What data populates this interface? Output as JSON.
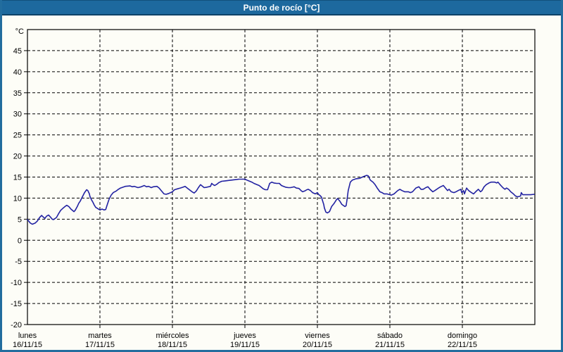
{
  "window": {
    "title": "Punto de rocío [°C]"
  },
  "colors": {
    "titlebar_bg": "#1d699e",
    "titlebar_text": "#ffffff",
    "frame_border": "#226d9e",
    "background": "#fdfdf7",
    "axis": "#000000",
    "gridline": "#000000",
    "series_line": "#2222a2"
  },
  "chart_data": {
    "type": "line",
    "title": "Punto de rocío [°C]",
    "grid": "dashed",
    "legend": "none",
    "y_axis": {
      "unit_label": "°C",
      "min": -20,
      "max": 50,
      "tick_step": 5,
      "tick_labels": [
        "45",
        "40",
        "35",
        "30",
        "25",
        "20",
        "15",
        "10",
        "5",
        "0",
        "-5",
        "-10",
        "-15",
        "-20"
      ]
    },
    "x_axis": {
      "hours_total": 168,
      "hours_per_day": 24,
      "day_labels": [
        {
          "name": "lunes",
          "date": "16/11/15"
        },
        {
          "name": "martes",
          "date": "17/11/15"
        },
        {
          "name": "miércoles",
          "date": "18/11/15"
        },
        {
          "name": "jueves",
          "date": "19/11/15"
        },
        {
          "name": "viernes",
          "date": "20/11/15"
        },
        {
          "name": "sábado",
          "date": "21/11/15"
        },
        {
          "name": "domingo",
          "date": "22/11/15"
        }
      ]
    },
    "series": [
      {
        "name": "Punto de rocío",
        "color": "#2222a2",
        "points": [
          [
            0,
            4.9
          ],
          [
            0.5,
            4.5
          ],
          [
            0.9,
            4.1
          ],
          [
            1.6,
            3.8
          ],
          [
            2.6,
            4.1
          ],
          [
            3.3,
            4.6
          ],
          [
            4,
            5.4
          ],
          [
            4.7,
            5.9
          ],
          [
            5.1,
            5.6
          ],
          [
            5.8,
            5.2
          ],
          [
            6.3,
            5.7
          ],
          [
            7,
            6
          ],
          [
            7.5,
            5.6
          ],
          [
            8.2,
            5
          ],
          [
            8.6,
            4.9
          ],
          [
            9.6,
            5.4
          ],
          [
            10.3,
            6.3
          ],
          [
            11,
            7.1
          ],
          [
            11.9,
            7.7
          ],
          [
            12.6,
            8.1
          ],
          [
            13,
            8.3
          ],
          [
            13.7,
            8
          ],
          [
            14.4,
            7.4
          ],
          [
            15.4,
            6.8
          ],
          [
            15.8,
            7.1
          ],
          [
            16.5,
            8
          ],
          [
            17,
            8.8
          ],
          [
            17.5,
            9.3
          ],
          [
            17.9,
            9.9
          ],
          [
            18.4,
            10.6
          ],
          [
            18.9,
            11.3
          ],
          [
            19.6,
            12
          ],
          [
            20,
            11.8
          ],
          [
            20.5,
            11
          ],
          [
            20.7,
            10.4
          ],
          [
            21.2,
            9.6
          ],
          [
            21.7,
            9
          ],
          [
            22.1,
            8.4
          ],
          [
            22.6,
            7.8
          ],
          [
            23.1,
            7.6
          ],
          [
            23.5,
            7.4
          ],
          [
            24,
            7.2
          ],
          [
            24.7,
            7.4
          ],
          [
            25.4,
            7.2
          ],
          [
            25.9,
            7.3
          ],
          [
            26.3,
            8.2
          ],
          [
            27,
            9.7
          ],
          [
            27.7,
            10.7
          ],
          [
            28.4,
            11.3
          ],
          [
            29.4,
            11.7
          ],
          [
            30.1,
            12.1
          ],
          [
            30.8,
            12.4
          ],
          [
            32.4,
            12.8
          ],
          [
            34,
            12.9
          ],
          [
            34.7,
            12.7
          ],
          [
            35.4,
            12.8
          ],
          [
            36.6,
            12.5
          ],
          [
            37.7,
            12.7
          ],
          [
            38.7,
            13
          ],
          [
            39.4,
            12.7
          ],
          [
            40.1,
            12.8
          ],
          [
            41,
            12.5
          ],
          [
            41.7,
            12.7
          ],
          [
            42.9,
            12.8
          ],
          [
            43.6,
            12.4
          ],
          [
            44.3,
            11.8
          ],
          [
            45.2,
            11
          ],
          [
            45.9,
            10.9
          ],
          [
            46.8,
            11.1
          ],
          [
            48,
            11.5
          ],
          [
            48.7,
            12
          ],
          [
            49.6,
            12.2
          ],
          [
            50.6,
            12.4
          ],
          [
            51.5,
            12.6
          ],
          [
            52.2,
            12.8
          ],
          [
            52.9,
            12.4
          ],
          [
            53.8,
            11.9
          ],
          [
            54.5,
            11.5
          ],
          [
            55.2,
            11.2
          ],
          [
            55.9,
            11.7
          ],
          [
            56.6,
            12.5
          ],
          [
            57.3,
            13.2
          ],
          [
            58,
            12.8
          ],
          [
            58.5,
            12.5
          ],
          [
            59.4,
            12.6
          ],
          [
            60.6,
            12.8
          ],
          [
            61,
            13.5
          ],
          [
            61.5,
            13.2
          ],
          [
            62,
            13
          ],
          [
            62.7,
            13.3
          ],
          [
            63.4,
            13.7
          ],
          [
            64.3,
            14
          ],
          [
            65.5,
            14.1
          ],
          [
            66.6,
            14.2
          ],
          [
            67.8,
            14.3
          ],
          [
            69,
            14.4
          ],
          [
            70.1,
            14.5
          ],
          [
            71.1,
            14.5
          ],
          [
            72,
            14.5
          ],
          [
            72.9,
            14.2
          ],
          [
            73.6,
            14
          ],
          [
            74.3,
            13.8
          ],
          [
            75,
            13.5
          ],
          [
            75.7,
            13.3
          ],
          [
            76.7,
            13
          ],
          [
            77.4,
            12.6
          ],
          [
            78.1,
            12.2
          ],
          [
            78.8,
            12
          ],
          [
            79.5,
            12
          ],
          [
            80.2,
            13.5
          ],
          [
            80.9,
            13.8
          ],
          [
            81.6,
            13.6
          ],
          [
            82.5,
            13.5
          ],
          [
            83.4,
            13.5
          ],
          [
            84.1,
            13
          ],
          [
            84.8,
            12.8
          ],
          [
            85.5,
            12.6
          ],
          [
            86.4,
            12.5
          ],
          [
            87.1,
            12.5
          ],
          [
            87.8,
            12.6
          ],
          [
            88.3,
            12.7
          ],
          [
            89,
            12.4
          ],
          [
            89.9,
            12.3
          ],
          [
            90.6,
            11.8
          ],
          [
            91.1,
            11.5
          ],
          [
            91.8,
            11.7
          ],
          [
            92.5,
            12
          ],
          [
            93,
            12.1
          ],
          [
            93.7,
            11.8
          ],
          [
            94.4,
            11.3
          ],
          [
            95.3,
            11
          ],
          [
            96,
            11.3
          ],
          [
            96.5,
            10.8
          ],
          [
            96.9,
            10.6
          ],
          [
            97.4,
            10.2
          ],
          [
            97.6,
            9.6
          ],
          [
            98.1,
            8.5
          ],
          [
            98.3,
            7.7
          ],
          [
            98.8,
            6.7
          ],
          [
            99.3,
            6.5
          ],
          [
            100,
            6.8
          ],
          [
            100.7,
            8
          ],
          [
            101.6,
            8.8
          ],
          [
            102.3,
            9.6
          ],
          [
            102.7,
            9.9
          ],
          [
            103.4,
            9.3
          ],
          [
            104.1,
            8.5
          ],
          [
            105.1,
            8
          ],
          [
            105.5,
            8.2
          ],
          [
            105.8,
            9.6
          ],
          [
            106.2,
            11.8
          ],
          [
            106.9,
            13.8
          ],
          [
            107.6,
            14.3
          ],
          [
            108.8,
            14.6
          ],
          [
            110,
            14.7
          ],
          [
            110.9,
            15
          ],
          [
            111.6,
            15.2
          ],
          [
            112.3,
            15.4
          ],
          [
            112.8,
            15.3
          ],
          [
            113.5,
            14.3
          ],
          [
            114.4,
            13.8
          ],
          [
            115.1,
            13.2
          ],
          [
            115.8,
            12.4
          ],
          [
            116.7,
            11.5
          ],
          [
            117.4,
            11.3
          ],
          [
            118.1,
            11
          ],
          [
            119,
            11
          ],
          [
            120,
            10.8
          ],
          [
            120.5,
            10.7
          ],
          [
            121.4,
            11
          ],
          [
            122.6,
            11.8
          ],
          [
            123.3,
            12.1
          ],
          [
            124,
            11.8
          ],
          [
            124.9,
            11.5
          ],
          [
            126.1,
            11.5
          ],
          [
            126.8,
            11.3
          ],
          [
            127.5,
            11.5
          ],
          [
            128.6,
            12.4
          ],
          [
            129.6,
            12.7
          ],
          [
            130.3,
            12.1
          ],
          [
            131,
            12.1
          ],
          [
            131.9,
            12.5
          ],
          [
            132.6,
            12.7
          ],
          [
            133.3,
            12.1
          ],
          [
            134.2,
            11.5
          ],
          [
            134.9,
            11.8
          ],
          [
            136.1,
            12.4
          ],
          [
            136.8,
            12.7
          ],
          [
            137.7,
            13
          ],
          [
            138.4,
            12.4
          ],
          [
            139.1,
            11.8
          ],
          [
            139.6,
            12.1
          ],
          [
            140.3,
            11.5
          ],
          [
            141.2,
            11.3
          ],
          [
            141.9,
            11.5
          ],
          [
            142.6,
            11.8
          ],
          [
            143.5,
            12.1
          ],
          [
            143.8,
            11.3
          ],
          [
            144,
            11.5
          ],
          [
            144.4,
            11.8
          ],
          [
            144.7,
            11
          ],
          [
            145.4,
            12.4
          ],
          [
            146.1,
            11.8
          ],
          [
            147,
            11.3
          ],
          [
            147.7,
            11
          ],
          [
            148.4,
            11.5
          ],
          [
            149.3,
            12.1
          ],
          [
            150,
            11.5
          ],
          [
            150.5,
            11.8
          ],
          [
            151.2,
            12.7
          ],
          [
            151.9,
            13.2
          ],
          [
            152.8,
            13.6
          ],
          [
            153.5,
            13.8
          ],
          [
            154.7,
            13.8
          ],
          [
            155.4,
            13.6
          ],
          [
            155.8,
            13.8
          ],
          [
            156.5,
            13.2
          ],
          [
            157.4,
            12.5
          ],
          [
            158.1,
            12.1
          ],
          [
            158.6,
            12.4
          ],
          [
            159.3,
            12.1
          ],
          [
            160,
            11.5
          ],
          [
            160.9,
            11
          ],
          [
            161.6,
            10.5
          ],
          [
            162.3,
            10.3
          ],
          [
            163.3,
            10.5
          ],
          [
            163.5,
            11.3
          ],
          [
            164,
            10.8
          ],
          [
            164.7,
            10.8
          ],
          [
            165.6,
            10.8
          ],
          [
            166.6,
            10.8
          ],
          [
            167.8,
            10.9
          ]
        ]
      }
    ]
  }
}
